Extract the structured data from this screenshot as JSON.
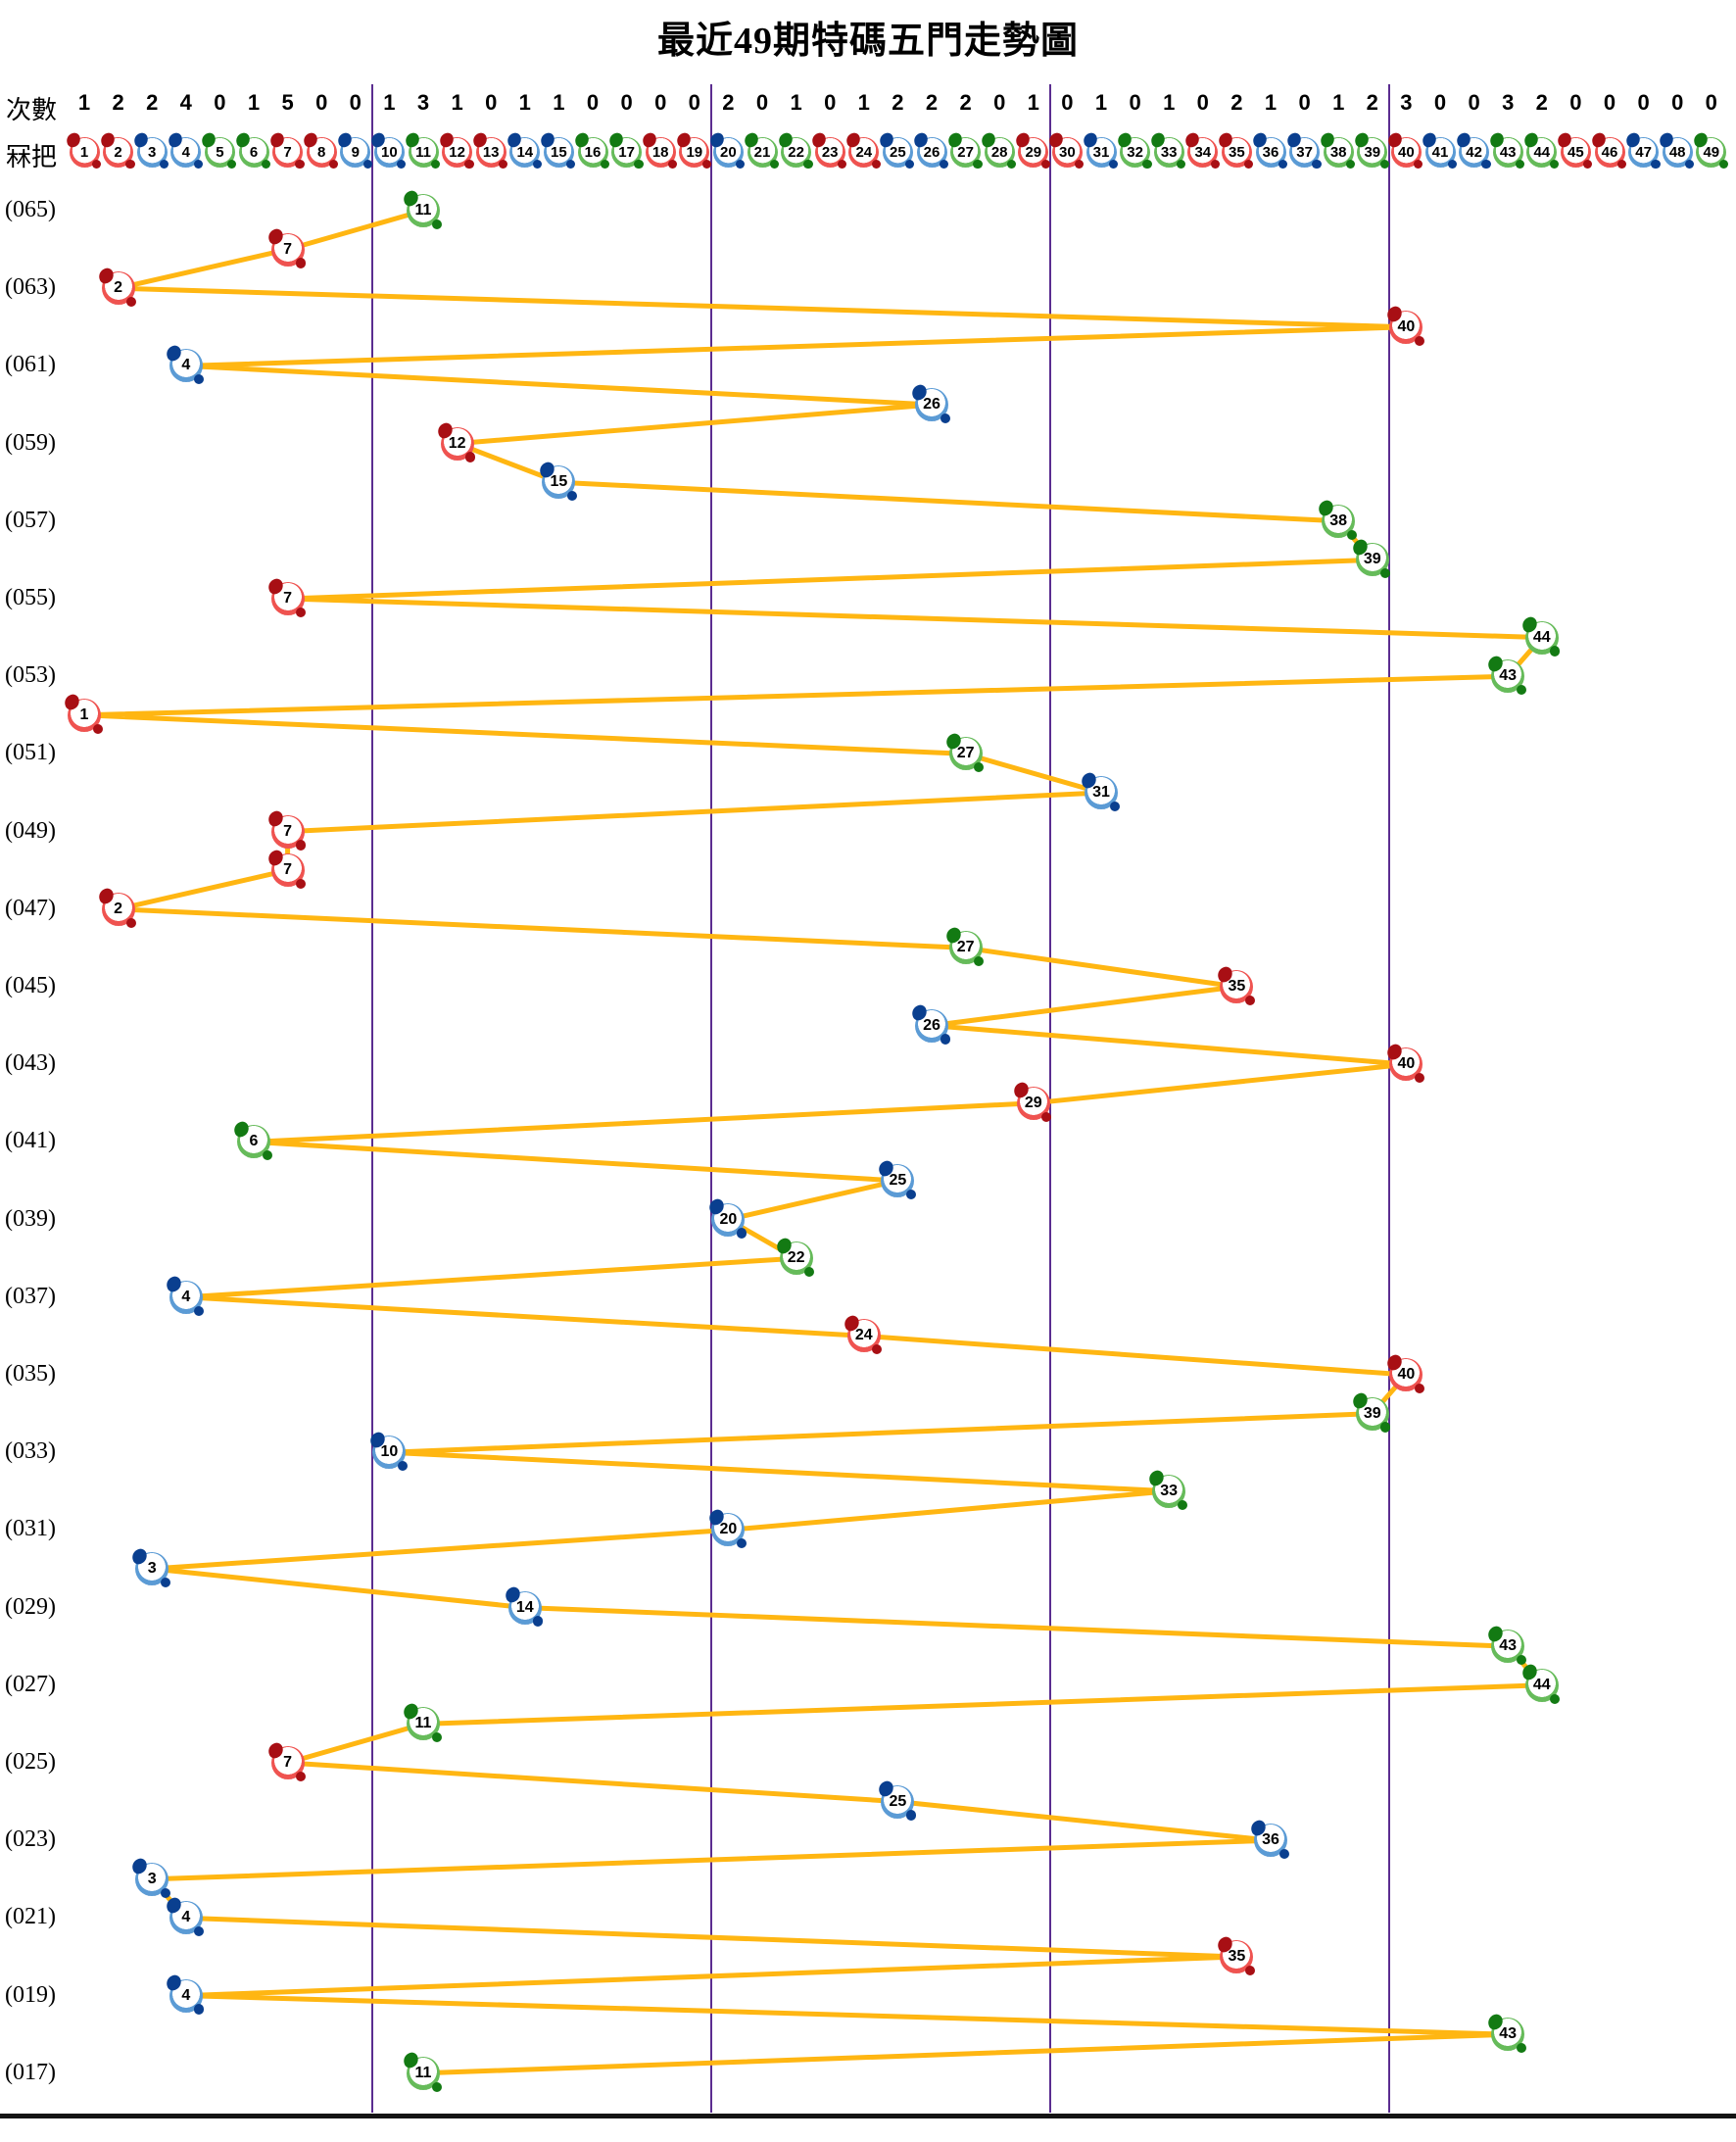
{
  "title": "最近49期特碼五門走勢圖",
  "header": {
    "counts_label": "次數",
    "balls_label": "冧把"
  },
  "palette": {
    "red": "#C3161C",
    "blue": "#0A4FA8",
    "green": "#178A17",
    "line": "#FFB612",
    "separator": "#5B2D90",
    "bottom_rule": "#141414"
  },
  "ball_color_groups": {
    "red": [
      1,
      2,
      7,
      8,
      12,
      13,
      18,
      19,
      23,
      24,
      29,
      30,
      34,
      35,
      40,
      45,
      46
    ],
    "blue": [
      3,
      4,
      9,
      10,
      14,
      15,
      20,
      25,
      26,
      31,
      36,
      37,
      41,
      42,
      47,
      48
    ],
    "green": [
      5,
      6,
      11,
      16,
      17,
      21,
      22,
      27,
      28,
      32,
      33,
      38,
      39,
      43,
      44,
      49
    ]
  },
  "chart_data": {
    "type": "line",
    "title": "最近49期特碼五門走勢圖",
    "x_axis": {
      "label": "冧把",
      "min": 1,
      "max": 49,
      "group_separators_after": [
        9,
        19,
        29,
        39
      ]
    },
    "y_axis": {
      "visible_period_labels": [
        "(065)",
        "(063)",
        "(061)",
        "(059)",
        "(057)",
        "(055)",
        "(053)",
        "(051)",
        "(049)",
        "(047)",
        "(045)",
        "(043)",
        "(041)",
        "(039)",
        "(037)",
        "(035)",
        "(033)",
        "(031)",
        "(029)",
        "(027)",
        "(025)",
        "(023)",
        "(021)",
        "(019)",
        "(017)"
      ]
    },
    "counts_per_number": [
      1,
      2,
      2,
      4,
      0,
      1,
      5,
      0,
      0,
      1,
      3,
      1,
      0,
      1,
      1,
      0,
      0,
      0,
      0,
      2,
      0,
      1,
      0,
      1,
      2,
      2,
      2,
      0,
      1,
      0,
      1,
      0,
      1,
      0,
      2,
      1,
      0,
      1,
      2,
      3,
      0,
      0,
      3,
      2,
      0,
      0,
      0,
      0,
      0
    ],
    "series": [
      {
        "name": "特碼",
        "points": [
          {
            "period": "065",
            "label": "(065)",
            "number": 11
          },
          {
            "period": "064",
            "label": "",
            "number": 7
          },
          {
            "period": "063",
            "label": "(063)",
            "number": 2
          },
          {
            "period": "062",
            "label": "",
            "number": 40
          },
          {
            "period": "061",
            "label": "(061)",
            "number": 4
          },
          {
            "period": "060",
            "label": "",
            "number": 26
          },
          {
            "period": "059",
            "label": "(059)",
            "number": 12
          },
          {
            "period": "058",
            "label": "",
            "number": 15
          },
          {
            "period": "057",
            "label": "(057)",
            "number": 38
          },
          {
            "period": "056",
            "label": "",
            "number": 39
          },
          {
            "period": "055",
            "label": "(055)",
            "number": 7
          },
          {
            "period": "054",
            "label": "",
            "number": 44
          },
          {
            "period": "053",
            "label": "(053)",
            "number": 43
          },
          {
            "period": "052",
            "label": "",
            "number": 1
          },
          {
            "period": "051",
            "label": "(051)",
            "number": 27
          },
          {
            "period": "050",
            "label": "",
            "number": 31
          },
          {
            "period": "049",
            "label": "(049)",
            "number": 7
          },
          {
            "period": "048",
            "label": "",
            "number": 7
          },
          {
            "period": "047",
            "label": "(047)",
            "number": 2
          },
          {
            "period": "046",
            "label": "",
            "number": 27
          },
          {
            "period": "045",
            "label": "(045)",
            "number": 35
          },
          {
            "period": "044",
            "label": "",
            "number": 26
          },
          {
            "period": "043",
            "label": "(043)",
            "number": 40
          },
          {
            "period": "042",
            "label": "",
            "number": 29
          },
          {
            "period": "041",
            "label": "(041)",
            "number": 6
          },
          {
            "period": "040",
            "label": "",
            "number": 25
          },
          {
            "period": "039",
            "label": "(039)",
            "number": 20
          },
          {
            "period": "038",
            "label": "",
            "number": 22
          },
          {
            "period": "037",
            "label": "(037)",
            "number": 4
          },
          {
            "period": "036",
            "label": "",
            "number": 24
          },
          {
            "period": "035",
            "label": "(035)",
            "number": 40
          },
          {
            "period": "034",
            "label": "",
            "number": 39
          },
          {
            "period": "033",
            "label": "(033)",
            "number": 10
          },
          {
            "period": "032",
            "label": "",
            "number": 33
          },
          {
            "period": "031",
            "label": "(031)",
            "number": 20
          },
          {
            "period": "030",
            "label": "",
            "number": 3
          },
          {
            "period": "029",
            "label": "(029)",
            "number": 14
          },
          {
            "period": "028",
            "label": "",
            "number": 43
          },
          {
            "period": "027",
            "label": "(027)",
            "number": 44
          },
          {
            "period": "026",
            "label": "",
            "number": 11
          },
          {
            "period": "025",
            "label": "(025)",
            "number": 7
          },
          {
            "period": "024",
            "label": "",
            "number": 25
          },
          {
            "period": "023",
            "label": "(023)",
            "number": 36
          },
          {
            "period": "022",
            "label": "",
            "number": 3
          },
          {
            "period": "021",
            "label": "(021)",
            "number": 4
          },
          {
            "period": "020",
            "label": "",
            "number": 35
          },
          {
            "period": "019",
            "label": "(019)",
            "number": 4
          },
          {
            "period": "018",
            "label": "",
            "number": 43
          },
          {
            "period": "017",
            "label": "(017)",
            "number": 11
          }
        ]
      }
    ]
  }
}
